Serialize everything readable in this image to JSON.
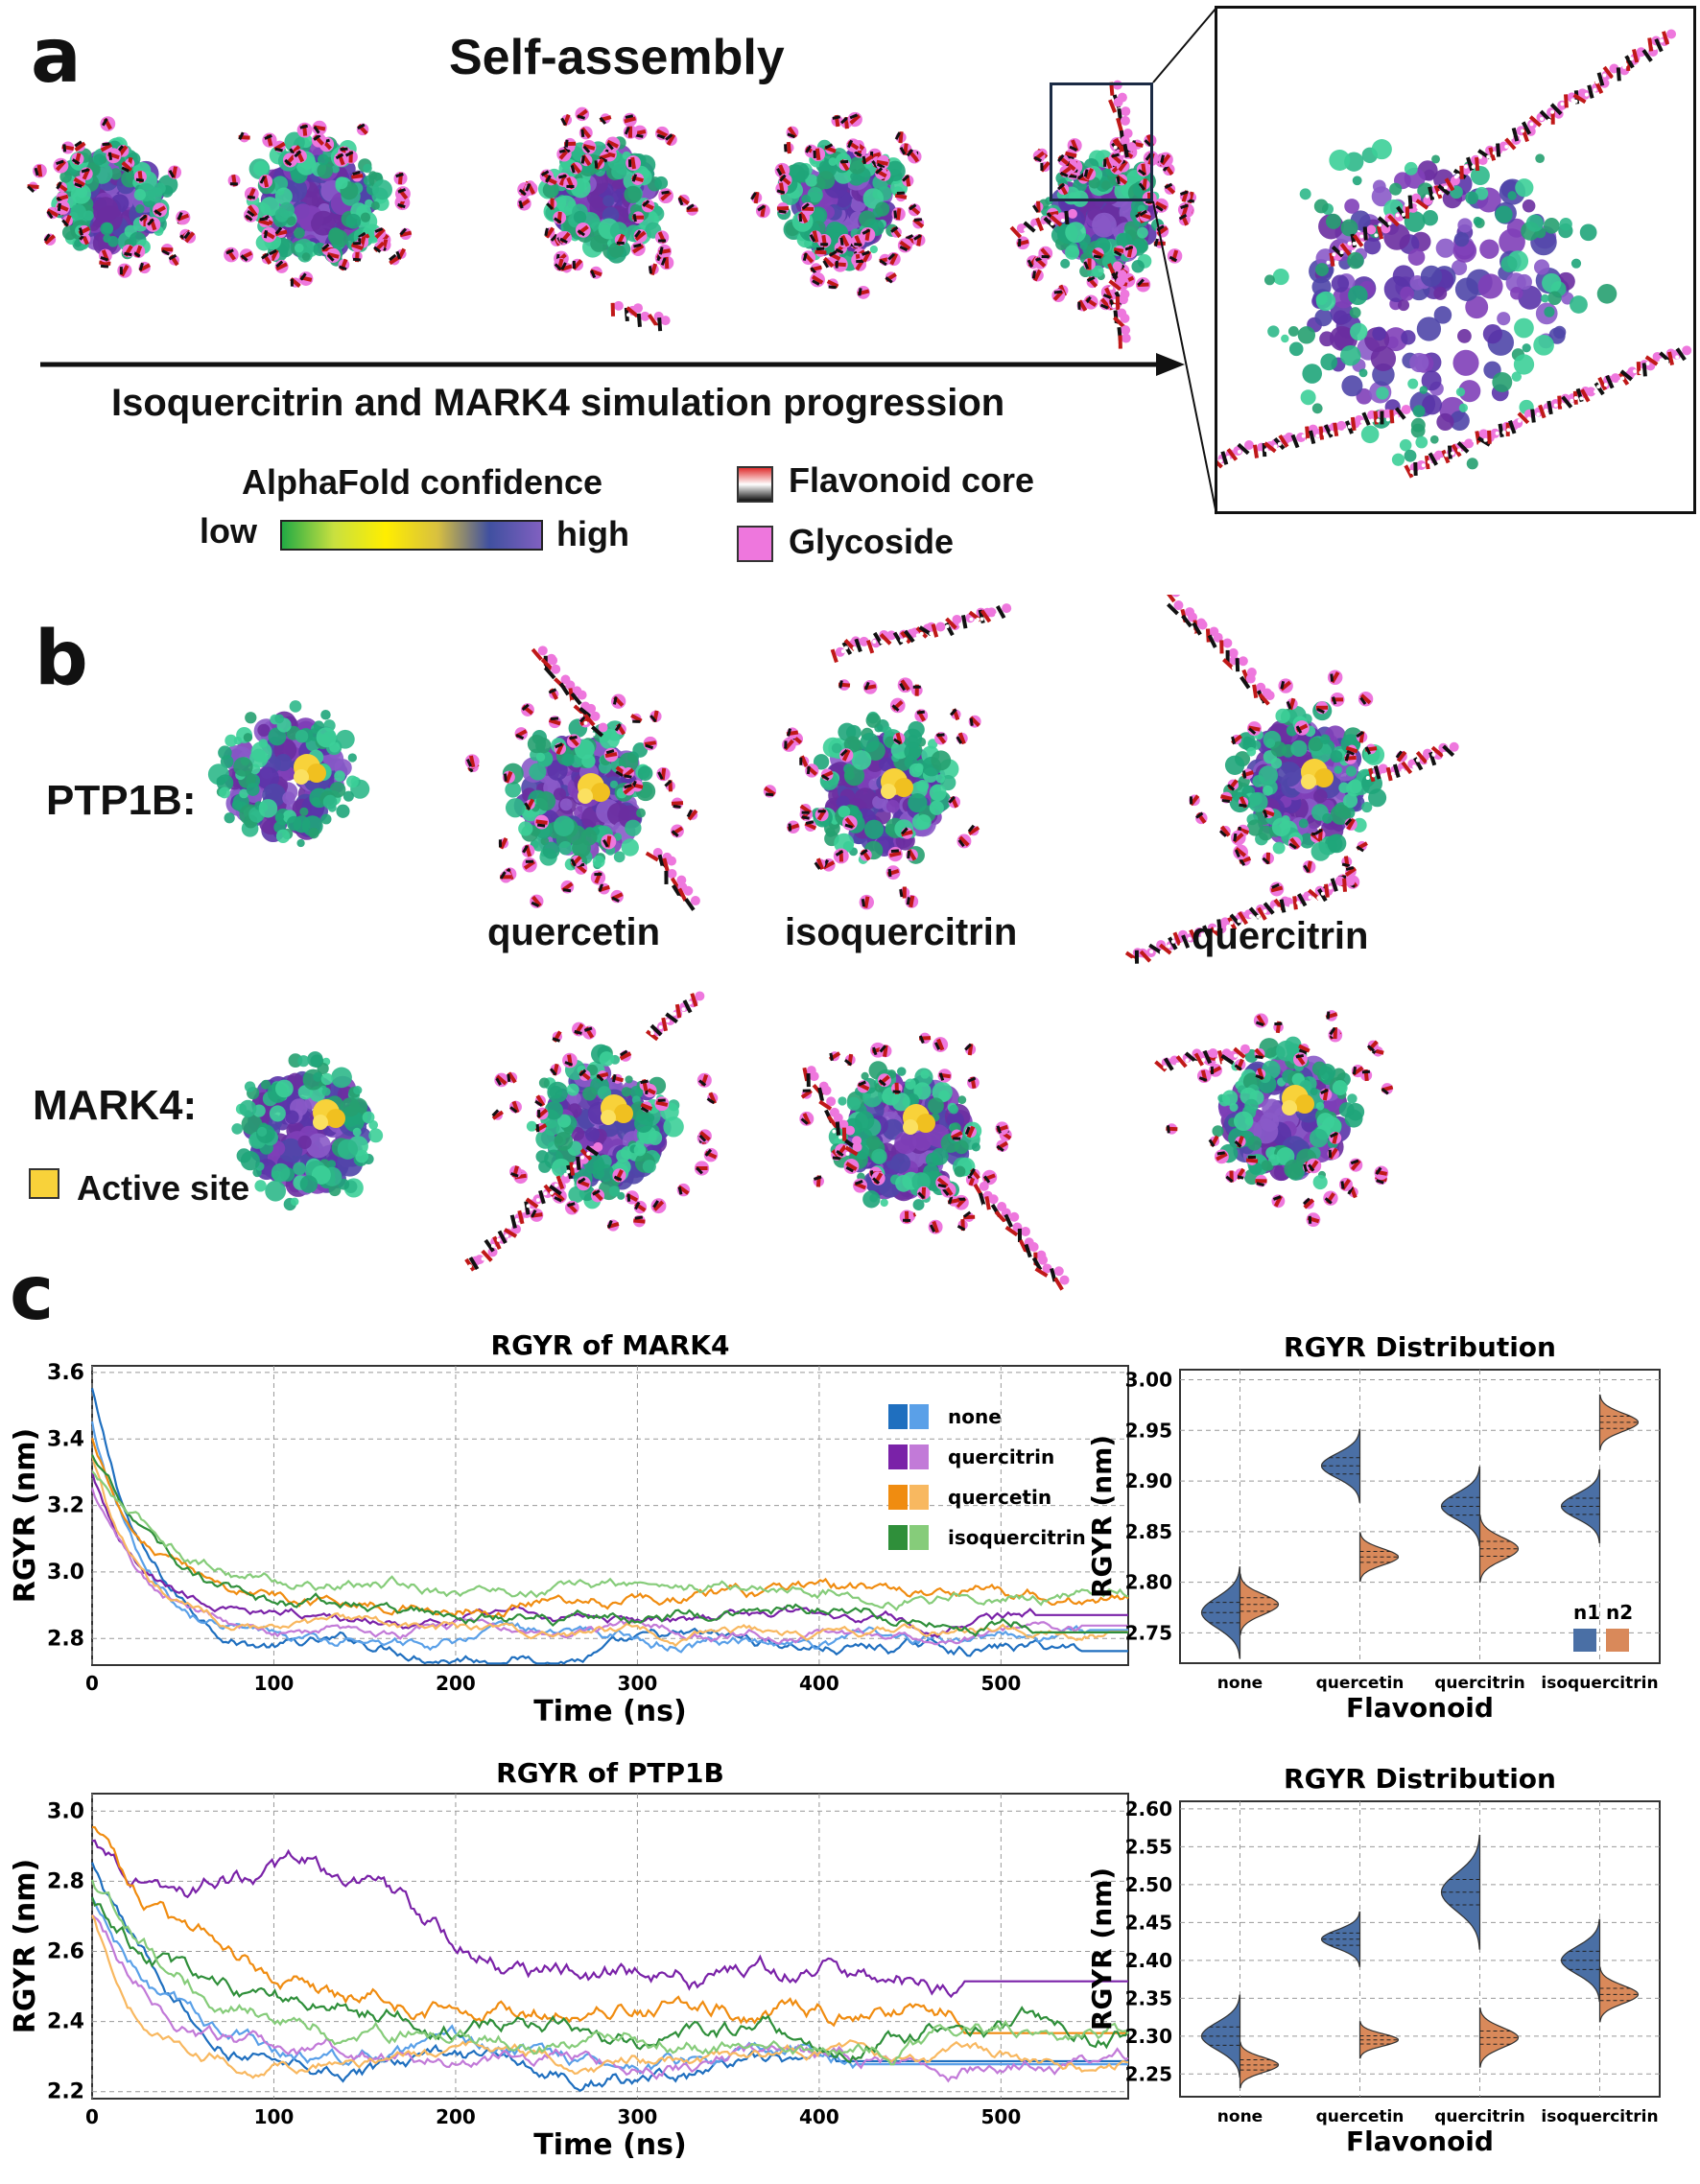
{
  "panel_a": {
    "label": "a",
    "title": "Self-assembly",
    "arrow_caption": "Isoquercitrin and MARK4 simulation progression",
    "colorbar_title": "AlphaFold confidence",
    "colorbar_low": "low",
    "colorbar_high": "high",
    "legend": [
      {
        "name": "Flavonoid core",
        "color": "#cc2222"
      },
      {
        "name": "Glycoside",
        "color": "#ee77dd"
      }
    ]
  },
  "panel_b": {
    "label": "b",
    "rows": [
      "PTP1B:",
      "MARK4:"
    ],
    "columns": [
      "quercetin",
      "isoquercitrin",
      "quercitrin"
    ],
    "active_site_label": "Active site",
    "active_site_color": "#f8d23a"
  },
  "panel_c": {
    "label": "c"
  },
  "colors": {
    "none_dark": "#1f6fbf",
    "none_light": "#5aa0e8",
    "quercitrin_dark": "#7a22a8",
    "quercitrin_light": "#c27ad8",
    "quercetin_dark": "#f08c10",
    "quercetin_light": "#f8b860",
    "isoquercitrin_dark": "#2f8f3a",
    "isoquercitrin_light": "#86cc7a",
    "violin_n1": "#4a6fa5",
    "violin_n2": "#d9895a"
  },
  "chart_data": [
    {
      "type": "line",
      "id": "mark4",
      "title": "RGYR of MARK4",
      "xlabel": "Time (ns)",
      "ylabel": "RGYR (nm)",
      "xlim": [
        0,
        570
      ],
      "ylim": [
        2.72,
        3.62
      ],
      "xticks": [
        0,
        100,
        200,
        300,
        400,
        500
      ],
      "yticks": [
        2.8,
        3.0,
        3.2,
        3.4,
        3.6
      ],
      "legend": [
        "none",
        "quercitrin",
        "quercetin",
        "isoquercitrin"
      ],
      "series": [
        {
          "name": "none",
          "replica": "n1",
          "start": 3.55,
          "final": 2.77,
          "tau": 28,
          "noise": 0.012,
          "end_x": 545
        },
        {
          "name": "none",
          "replica": "n2",
          "start": 3.45,
          "final": 2.79,
          "tau": 30,
          "noise": 0.012,
          "end_x": 550
        },
        {
          "name": "quercitrin",
          "replica": "n1",
          "start": 3.3,
          "final": 2.86,
          "tau": 25,
          "noise": 0.01,
          "end_x": 520
        },
        {
          "name": "quercitrin",
          "replica": "n2",
          "start": 3.25,
          "final": 2.82,
          "tau": 30,
          "noise": 0.01,
          "end_x": 545
        },
        {
          "name": "quercetin",
          "replica": "n1",
          "start": 3.4,
          "final": 2.93,
          "tau": 30,
          "noise": 0.012,
          "end_x": 570
        },
        {
          "name": "quercetin",
          "replica": "n2",
          "start": 3.35,
          "final": 2.81,
          "tau": 25,
          "noise": 0.01,
          "end_x": 560
        },
        {
          "name": "isoquercitrin",
          "replica": "n1",
          "start": 3.35,
          "final": 2.87,
          "tau": 40,
          "noise": 0.012,
          "end_x": 520
        },
        {
          "name": "isoquercitrin",
          "replica": "n2",
          "start": 3.3,
          "final": 2.95,
          "tau": 45,
          "noise": 0.012,
          "end_x": 570
        }
      ]
    },
    {
      "type": "line",
      "id": "ptp1b",
      "title": "RGYR of PTP1B",
      "xlabel": "Time (ns)",
      "ylabel": "RGYR (nm)",
      "xlim": [
        0,
        570
      ],
      "ylim": [
        2.18,
        3.05
      ],
      "xticks": [
        0,
        100,
        200,
        300,
        400,
        500
      ],
      "yticks": [
        2.2,
        2.4,
        2.6,
        2.8,
        3.0
      ],
      "series": [
        {
          "name": "none",
          "replica": "n1",
          "start": 2.85,
          "final": 2.25,
          "tau": 45,
          "noise": 0.015,
          "end_x": 410
        },
        {
          "name": "none",
          "replica": "n2",
          "start": 2.75,
          "final": 2.28,
          "tau": 40,
          "noise": 0.015,
          "end_x": 420
        },
        {
          "name": "quercitrin",
          "replica": "n1",
          "start": 2.9,
          "final": 2.52,
          "tau": 90,
          "noise": 0.02,
          "end_x": 480
        },
        {
          "name": "quercitrin",
          "replica": "n2",
          "start": 2.7,
          "final": 2.3,
          "tau": 40,
          "noise": 0.015,
          "end_x": 570
        },
        {
          "name": "quercetin",
          "replica": "n1",
          "start": 2.95,
          "final": 2.43,
          "tau": 60,
          "noise": 0.018,
          "end_x": 480
        },
        {
          "name": "quercetin",
          "replica": "n2",
          "start": 2.7,
          "final": 2.29,
          "tau": 25,
          "noise": 0.012,
          "end_x": 570
        },
        {
          "name": "isoquercitrin",
          "replica": "n1",
          "start": 2.75,
          "final": 2.38,
          "tau": 60,
          "noise": 0.018,
          "end_x": 570
        },
        {
          "name": "isoquercitrin",
          "replica": "n2",
          "start": 2.8,
          "final": 2.37,
          "tau": 50,
          "noise": 0.016,
          "end_x": 570
        }
      ]
    },
    {
      "type": "violin",
      "id": "dist_mark4",
      "title": "RGYR Distribution",
      "xlabel": "Flavonoid",
      "ylabel": "RGYR (nm)",
      "categories": [
        "none",
        "quercetin",
        "quercitrin",
        "isoquercitrin"
      ],
      "ylim": [
        2.72,
        3.01
      ],
      "yticks": [
        2.75,
        2.8,
        2.85,
        2.9,
        2.95,
        3.0
      ],
      "legend": [
        "n1",
        "n2"
      ],
      "n1": [
        {
          "mean": 2.77,
          "sd": 0.015
        },
        {
          "mean": 2.915,
          "sd": 0.012
        },
        {
          "mean": 2.875,
          "sd": 0.013
        },
        {
          "mean": 2.875,
          "sd": 0.012
        }
      ],
      "n2": [
        {
          "mean": 2.778,
          "sd": 0.01
        },
        {
          "mean": 2.825,
          "sd": 0.008
        },
        {
          "mean": 2.833,
          "sd": 0.011
        },
        {
          "mean": 2.958,
          "sd": 0.009
        }
      ]
    },
    {
      "type": "violin",
      "id": "dist_ptp1b",
      "title": "RGYR Distribution",
      "xlabel": "Flavonoid",
      "ylabel": "RGYR (nm)",
      "categories": [
        "none",
        "quercetin",
        "quercitrin",
        "isoquercitrin"
      ],
      "ylim": [
        2.22,
        2.61
      ],
      "yticks": [
        2.25,
        2.3,
        2.35,
        2.4,
        2.45,
        2.5,
        2.55,
        2.6
      ],
      "n1": [
        {
          "mean": 2.3,
          "sd": 0.018
        },
        {
          "mean": 2.428,
          "sd": 0.012
        },
        {
          "mean": 2.49,
          "sd": 0.025
        },
        {
          "mean": 2.4,
          "sd": 0.018
        }
      ],
      "n2": [
        {
          "mean": 2.262,
          "sd": 0.01
        },
        {
          "mean": 2.295,
          "sd": 0.008
        },
        {
          "mean": 2.298,
          "sd": 0.013
        },
        {
          "mean": 2.355,
          "sd": 0.012
        }
      ]
    }
  ]
}
